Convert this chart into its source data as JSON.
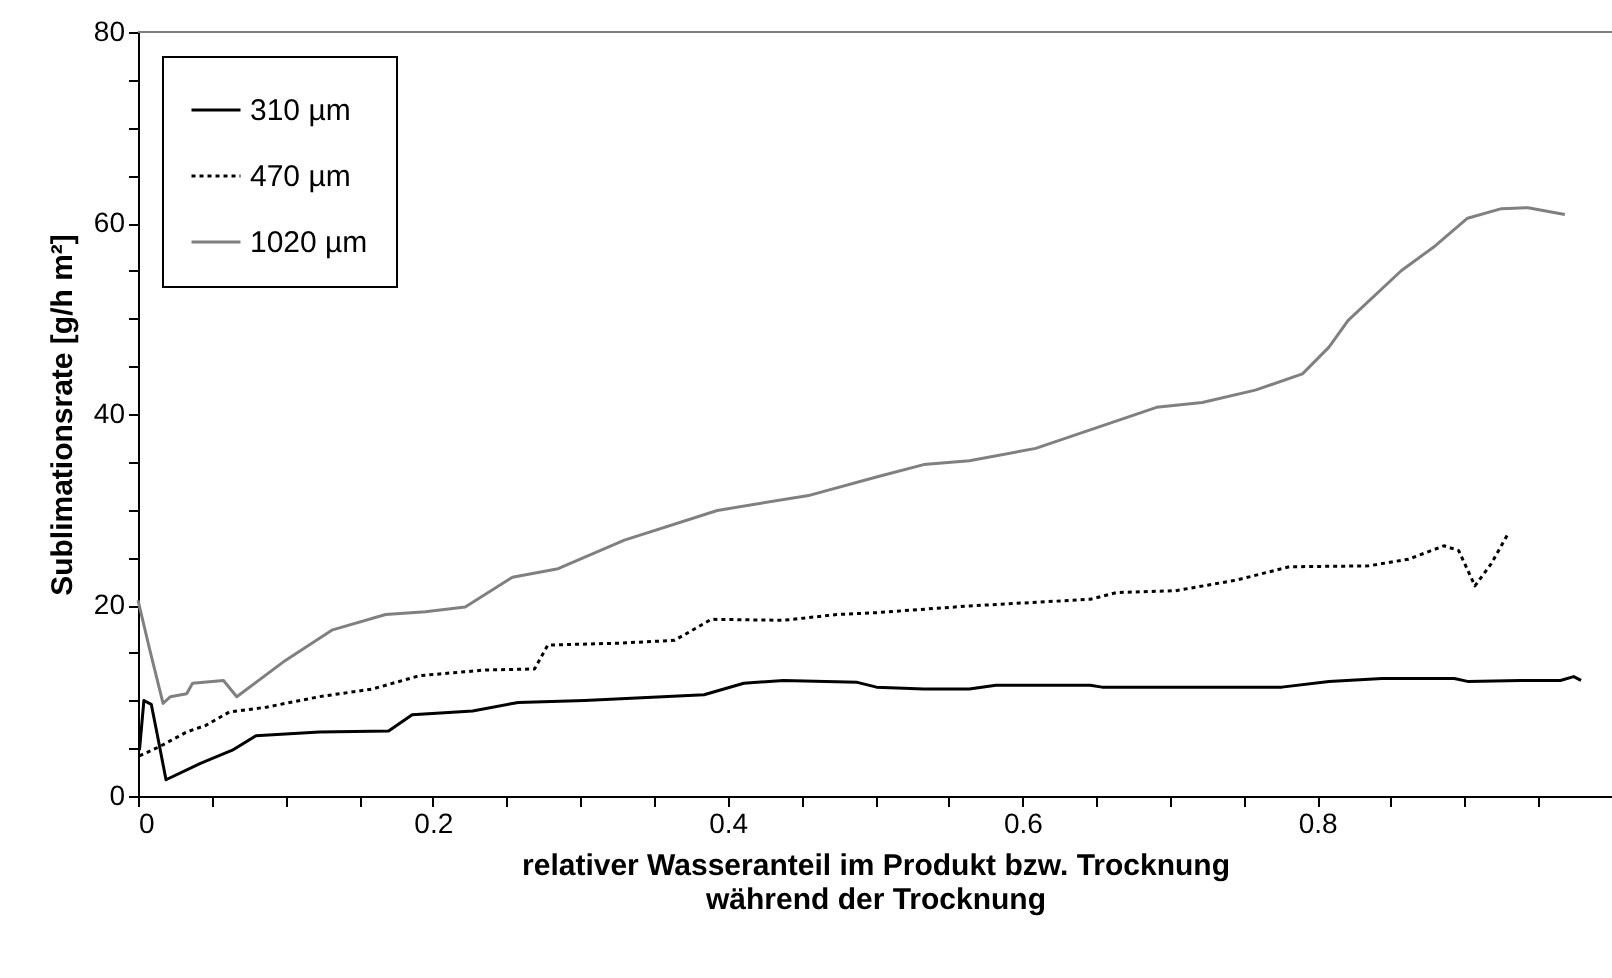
{
  "chart_data": {
    "type": "line",
    "xlabel": "relativer Wasseranteil im Produkt bzw. Trocknung\nwährend der Trocknung",
    "ylabel": "Sublimationsrate [g/h m²]",
    "xlim": [
      0,
      1
    ],
    "ylim": [
      0,
      80
    ],
    "xticks": [
      0,
      {
        "value": 0.05,
        "label": null
      },
      {
        "value": 0.1,
        "label": null
      },
      {
        "value": 0.15,
        "label": null
      },
      0.2,
      {
        "value": 0.25,
        "label": null
      },
      {
        "value": 0.3,
        "label": null
      },
      {
        "value": 0.35,
        "label": null
      },
      0.4,
      {
        "value": 0.45,
        "label": null
      },
      {
        "value": 0.5,
        "label": null
      },
      {
        "value": 0.55,
        "label": null
      },
      0.6,
      {
        "value": 0.65,
        "label": null
      },
      {
        "value": 0.7,
        "label": null
      },
      {
        "value": 0.75,
        "label": null
      },
      0.8,
      {
        "value": 0.85,
        "label": null
      },
      {
        "value": 0.9,
        "label": null
      },
      {
        "value": 0.95,
        "label": null
      },
      {
        "value": 1,
        "label": null
      }
    ],
    "yticks": [
      0,
      {
        "value": 5,
        "label": null
      },
      {
        "value": 10,
        "label": null
      },
      {
        "value": 15,
        "label": null
      },
      20,
      {
        "value": 25,
        "label": null
      },
      {
        "value": 30,
        "label": null
      },
      {
        "value": 35,
        "label": null
      },
      40,
      {
        "value": 45,
        "label": null
      },
      {
        "value": 50,
        "label": null
      },
      {
        "value": 55,
        "label": null
      },
      60,
      {
        "value": 65,
        "label": null
      },
      {
        "value": 70,
        "label": null
      },
      {
        "value": 75,
        "label": null
      },
      80
    ],
    "grid": false,
    "legend": "top left",
    "marker": "none",
    "series": [
      {
        "name": "310 µm",
        "color": "#000000",
        "line_style": "solid",
        "x": [
          0.001,
          0.004,
          0.009,
          0.013,
          0.019,
          0.042,
          0.064,
          0.08,
          0.123,
          0.17,
          0.186,
          0.227,
          0.258,
          0.303,
          0.384,
          0.411,
          0.438,
          0.488,
          0.501,
          0.533,
          0.564,
          0.582,
          0.646,
          0.654,
          0.776,
          0.808,
          0.844,
          0.893,
          0.902,
          0.938,
          0.965,
          0.974,
          0.979
        ],
        "values": [
          4.8,
          10,
          9.6,
          6.5,
          1.7,
          3.4,
          4.8,
          6.3,
          6.7,
          6.8,
          8.5,
          8.9,
          9.8,
          10.0,
          10.6,
          11.8,
          12.1,
          11.9,
          11.4,
          11.2,
          11.2,
          11.6,
          11.6,
          11.4,
          11.4,
          12.0,
          12.3,
          12.3,
          12.0,
          12.1,
          12.1,
          12.5,
          12.1
        ]
      },
      {
        "name": "470 µm",
        "color": "#000000",
        "line_style": "dotted",
        "x": [
          0.001,
          0.015,
          0.033,
          0.046,
          0.062,
          0.087,
          0.123,
          0.159,
          0.191,
          0.236,
          0.269,
          0.278,
          0.326,
          0.364,
          0.389,
          0.438,
          0.474,
          0.501,
          0.564,
          0.646,
          0.664,
          0.704,
          0.745,
          0.781,
          0.835,
          0.862,
          0.886,
          0.896,
          0.907,
          0.918,
          0.93
        ],
        "values": [
          4.2,
          5.2,
          6.7,
          7.4,
          8.8,
          9.3,
          10.4,
          11.2,
          12.6,
          13.2,
          13.3,
          15.8,
          16.0,
          16.3,
          18.5,
          18.4,
          19.0,
          19.2,
          19.9,
          20.6,
          21.3,
          21.5,
          22.6,
          24.0,
          24.1,
          24.8,
          26.2,
          25.7,
          22.0,
          24.3,
          27.6
        ]
      },
      {
        "name": "1020 µm",
        "color": "#808080",
        "line_style": "solid",
        "x": [
          0.0,
          0.008,
          0.017,
          0.022,
          0.033,
          0.037,
          0.058,
          0.067,
          0.1,
          0.132,
          0.168,
          0.195,
          0.222,
          0.254,
          0.285,
          0.33,
          0.393,
          0.456,
          0.501,
          0.533,
          0.564,
          0.609,
          0.691,
          0.722,
          0.758,
          0.79,
          0.808,
          0.821,
          0.857,
          0.88,
          0.902,
          0.925,
          0.943,
          0.968
        ],
        "values": [
          20.5,
          15.3,
          9.7,
          10.4,
          10.7,
          11.8,
          12.1,
          10.4,
          14.2,
          17.4,
          19.0,
          19.3,
          19.8,
          22.9,
          23.8,
          26.8,
          29.9,
          31.5,
          33.4,
          34.7,
          35.1,
          36.4,
          40.7,
          41.2,
          42.5,
          44.2,
          47.0,
          49.8,
          55.0,
          57.6,
          60.5,
          61.5,
          61.6,
          60.9
        ]
      }
    ]
  }
}
